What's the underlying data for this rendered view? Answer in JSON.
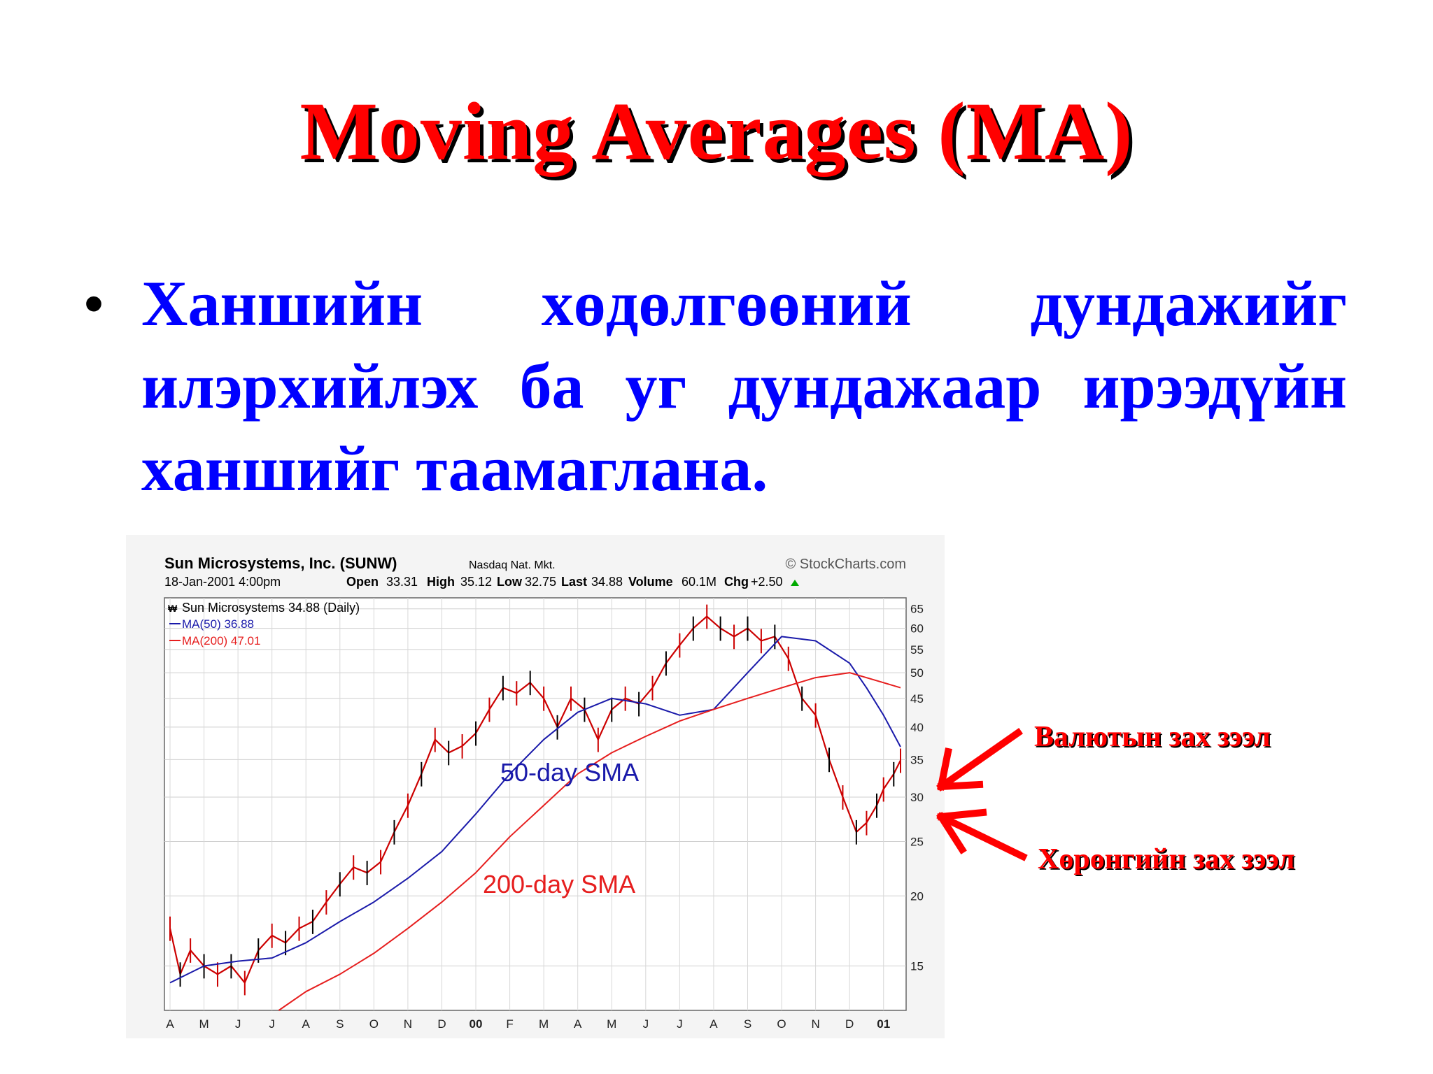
{
  "slide": {
    "title": "Moving Averages (MA)",
    "bullet": "Ханшийн хөдөлгөөний дундажийг илэрхийлэх ба уг дундажаар ирээдүйн ханшийг таамаглана.",
    "annotation_upper": "Валютын зах зээл",
    "annotation_lower": "Хөрөнгийн зах зээл"
  },
  "chart_data": {
    "type": "line",
    "title": "Sun Microsystems, Inc. (SUNW)",
    "exchange": "Nasdaq Nat. Mkt.",
    "source": "© StockCharts.com",
    "date_label": "18-Jan-2001 4:00pm",
    "quote": {
      "open_label": "Open",
      "open": "33.31",
      "high_label": "High",
      "high": "35.12",
      "low_label": "Low",
      "low": "32.75",
      "last_label": "Last",
      "last": "34.88",
      "volume_label": "Volume",
      "volume": "60.1M",
      "chg_label": "Chg",
      "chg": "+2.50"
    },
    "legend_title": "Sun Microsystems 34.88 (Daily)",
    "series_price_name": "Sun Microsystems",
    "ma50_legend": "MA(50) 36.88",
    "ma200_legend": "MA(200) 47.01",
    "label_ma50": "50-day SMA",
    "label_ma200": "200-day SMA",
    "y_scale": "log",
    "ylim": [
      12.5,
      68
    ],
    "y_ticks": [
      "65",
      "60",
      "55",
      "50",
      "45",
      "40",
      "35",
      "30",
      "25",
      "20",
      "15"
    ],
    "x_ticks": [
      "A",
      "M",
      "J",
      "J",
      "A",
      "S",
      "O",
      "N",
      "D",
      "00",
      "F",
      "M",
      "A",
      "M",
      "J",
      "J",
      "A",
      "S",
      "O",
      "N",
      "D",
      "01"
    ],
    "x_month_index": [
      0,
      1,
      2,
      3,
      4,
      5,
      6,
      7,
      8,
      9,
      10,
      11,
      12,
      13,
      14,
      15,
      16,
      17,
      18,
      19,
      20,
      21
    ],
    "series": [
      {
        "name": "price",
        "color": "#cc0000",
        "x": [
          0,
          0.3,
          0.6,
          1.0,
          1.4,
          1.8,
          2.2,
          2.6,
          3.0,
          3.4,
          3.8,
          4.2,
          4.6,
          5.0,
          5.4,
          5.8,
          6.2,
          6.6,
          7.0,
          7.4,
          7.8,
          8.2,
          8.6,
          9.0,
          9.4,
          9.8,
          10.2,
          10.6,
          11.0,
          11.4,
          11.8,
          12.2,
          12.6,
          13.0,
          13.4,
          13.8,
          14.2,
          14.6,
          15.0,
          15.4,
          15.8,
          16.2,
          16.6,
          17.0,
          17.4,
          17.8,
          18.2,
          18.6,
          19.0,
          19.4,
          19.8,
          20.2,
          20.5,
          20.8,
          21.0,
          21.3,
          21.5
        ],
        "values": [
          17.5,
          14.5,
          16.0,
          15.0,
          14.5,
          15.0,
          14.0,
          16.0,
          17.0,
          16.5,
          17.5,
          18.0,
          19.5,
          21.0,
          22.5,
          22.0,
          23.0,
          26.0,
          29.0,
          33.0,
          38.0,
          36.0,
          37.0,
          39.0,
          43.0,
          47.0,
          46.0,
          48.0,
          45.0,
          40.0,
          45.0,
          43.0,
          38.0,
          43.0,
          45.0,
          44.0,
          47.0,
          52.0,
          56.0,
          60.0,
          63.0,
          60.0,
          58.0,
          60.0,
          57.0,
          58.0,
          53.0,
          45.0,
          42.0,
          35.0,
          30.0,
          26.0,
          27.0,
          29.0,
          31.0,
          33.0,
          34.88
        ]
      },
      {
        "name": "MA(50)",
        "color": "#1a1aaa",
        "x": [
          0,
          1.0,
          2.0,
          3.0,
          4.0,
          5.0,
          6.0,
          7.0,
          8.0,
          9.0,
          10.0,
          11.0,
          12.0,
          13.0,
          14.0,
          15.0,
          16.0,
          17.0,
          18.0,
          19.0,
          20.0,
          20.5,
          21.0,
          21.5
        ],
        "values": [
          14.0,
          15.0,
          15.3,
          15.5,
          16.5,
          18.0,
          19.5,
          21.5,
          24.0,
          28.0,
          33.0,
          38.0,
          42.5,
          45.0,
          44.0,
          42.0,
          43.0,
          50.0,
          58.0,
          57.0,
          52.0,
          47.0,
          42.0,
          36.88
        ]
      },
      {
        "name": "MA(200)",
        "color": "#e61e1e",
        "x": [
          3.2,
          4.0,
          5.0,
          6.0,
          7.0,
          8.0,
          9.0,
          10.0,
          11.0,
          12.0,
          13.0,
          14.0,
          15.0,
          16.0,
          17.0,
          18.0,
          19.0,
          20.0,
          21.0,
          21.5
        ],
        "values": [
          12.5,
          13.5,
          14.5,
          15.8,
          17.5,
          19.5,
          22.0,
          25.5,
          29.0,
          33.0,
          36.0,
          38.5,
          41.0,
          43.0,
          45.0,
          47.0,
          49.0,
          50.0,
          48.0,
          47.01
        ]
      }
    ]
  }
}
